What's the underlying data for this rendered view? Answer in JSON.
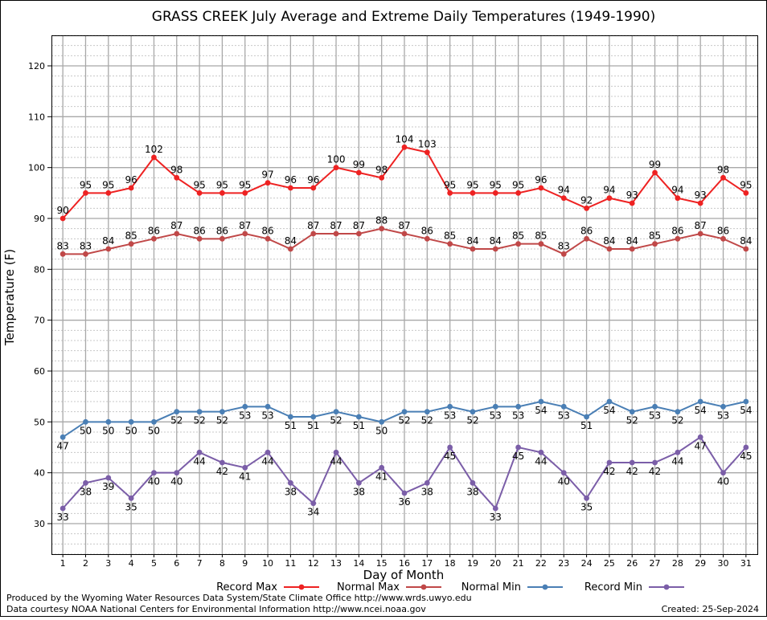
{
  "chart_data": {
    "type": "line",
    "title": "GRASS CREEK July Average and Extreme Daily Temperatures (1949-1990)",
    "xlabel": "Day of Month",
    "ylabel": "Temperature (F)",
    "xlim": [
      0.5,
      31.5
    ],
    "ylim": [
      24,
      126
    ],
    "yticks": [
      30,
      40,
      50,
      60,
      70,
      80,
      90,
      100,
      110,
      120
    ],
    "x": [
      1,
      2,
      3,
      4,
      5,
      6,
      7,
      8,
      9,
      10,
      11,
      12,
      13,
      14,
      15,
      16,
      17,
      18,
      19,
      20,
      21,
      22,
      23,
      24,
      25,
      26,
      27,
      28,
      29,
      30,
      31
    ],
    "grid": true,
    "legend_position": "bottom",
    "series": [
      {
        "name": "Record Max",
        "color": "#ee2222",
        "label_side": "above",
        "values": [
          90,
          95,
          95,
          96,
          102,
          98,
          95,
          95,
          95,
          97,
          96,
          96,
          100,
          99,
          98,
          104,
          103,
          95,
          95,
          95,
          95,
          96,
          94,
          92,
          94,
          93,
          99,
          94,
          93,
          98,
          95
        ]
      },
      {
        "name": "Normal Max",
        "color": "#c04848",
        "label_side": "above",
        "values": [
          83,
          83,
          84,
          85,
          86,
          87,
          86,
          86,
          87,
          86,
          84,
          87,
          87,
          87,
          88,
          87,
          86,
          85,
          84,
          84,
          85,
          85,
          83,
          86,
          84,
          84,
          85,
          86,
          87,
          86,
          84
        ]
      },
      {
        "name": "Normal Min",
        "color": "#4a7fb5",
        "label_side": "below",
        "values": [
          47,
          50,
          50,
          50,
          50,
          52,
          52,
          52,
          53,
          53,
          51,
          51,
          52,
          51,
          50,
          52,
          52,
          53,
          52,
          53,
          53,
          54,
          53,
          51,
          54,
          52,
          53,
          52,
          54,
          53,
          54
        ]
      },
      {
        "name": "Record Min",
        "color": "#7b5ea8",
        "label_side": "below",
        "values": [
          33,
          38,
          39,
          35,
          40,
          40,
          44,
          42,
          41,
          44,
          38,
          34,
          44,
          38,
          41,
          36,
          38,
          45,
          38,
          33,
          45,
          44,
          40,
          35,
          42,
          42,
          42,
          44,
          47,
          40,
          45
        ]
      }
    ]
  },
  "footer": {
    "line1": "Produced by the Wyoming Water Resources Data System/State Climate Office http://www.wrds.uwyo.edu",
    "line2": "Data courtesy NOAA National Centers for Environmental Information http://www.ncei.noaa.gov",
    "created": "Created:  25-Sep-2024"
  }
}
